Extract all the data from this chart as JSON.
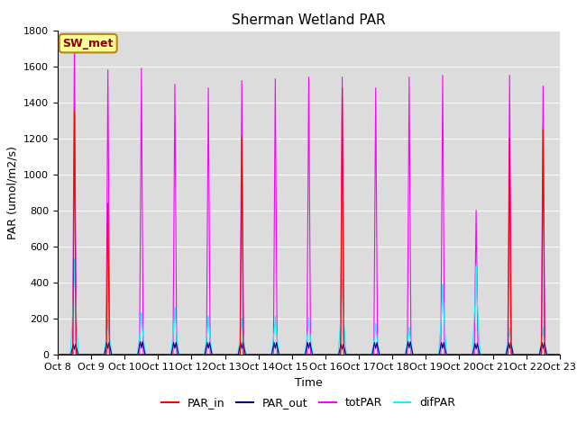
{
  "title": "Sherman Wetland PAR",
  "ylabel": "PAR (umol/m2/s)",
  "xlabel": "Time",
  "annotation": "SW_met",
  "ylim": [
    0,
    1800
  ],
  "legend": [
    "PAR_in",
    "PAR_out",
    "totPAR",
    "difPAR"
  ],
  "colors": {
    "PAR_in": "#ff0000",
    "PAR_out": "#00008b",
    "totPAR": "#ff00ff",
    "difPAR": "#00ffff"
  },
  "plot_bg": "#dcdcdc",
  "n_days": 15,
  "points_per_day": 288,
  "day_peaks_totPAR": [
    1750,
    1580,
    1590,
    1500,
    1480,
    1520,
    1530,
    1540,
    1540,
    1480,
    1540,
    1550,
    800,
    1550,
    1490
  ],
  "day_peaks_PAR_in": [
    1350,
    840,
    0,
    0,
    0,
    1210,
    0,
    0,
    1480,
    0,
    0,
    0,
    0,
    1200,
    1250
  ],
  "day_peaks_PAR_out": [
    55,
    65,
    70,
    65,
    65,
    65,
    65,
    65,
    55,
    65,
    70,
    65,
    60,
    65,
    65
  ],
  "day_peaks_difPAR": [
    530,
    195,
    230,
    260,
    210,
    200,
    210,
    200,
    410,
    170,
    150,
    390,
    490,
    145,
    150
  ],
  "xtick_labels": [
    "Oct 8",
    "Oct 9",
    "Oct 10",
    "Oct 11",
    "Oct 12",
    "Oct 13",
    "Oct 14",
    "Oct 15",
    "Oct 16",
    "Oct 17",
    "Oct 18",
    "Oct 19",
    "Oct 20",
    "Oct 21",
    "Oct 22",
    "Oct 23"
  ],
  "grid_color": "#ffffff",
  "linewidth": 0.8
}
